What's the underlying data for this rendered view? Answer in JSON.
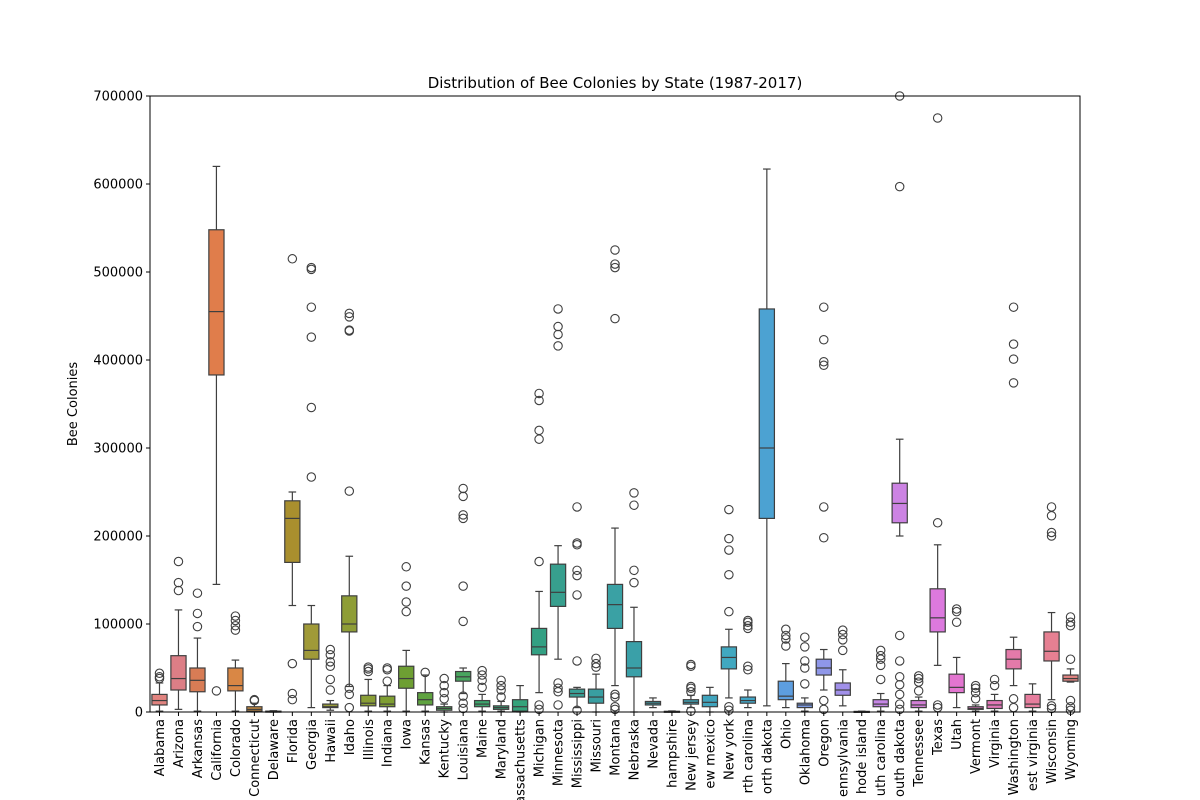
{
  "chart_data": {
    "type": "boxplot",
    "title": "Distribution of Bee Colonies by State (1987-2017)",
    "xlabel": "",
    "ylabel": "Bee Colonies",
    "ylim": [
      0,
      700000
    ],
    "y_ticks": [
      "0",
      "100000",
      "200000",
      "300000",
      "400000",
      "500000",
      "600000",
      "700000"
    ],
    "grid": false,
    "legend": "none",
    "categories": [
      "Alabama",
      "Arizona",
      "Arkansas",
      "California",
      "Colorado",
      "Connecticut",
      "Delaware",
      "Florida",
      "Georgia",
      "Hawaii",
      "Idaho",
      "Illinois",
      "Indiana",
      "Iowa",
      "Kansas",
      "Kentucky",
      "Louisiana",
      "Maine",
      "Maryland",
      "Massachusetts",
      "Michigan",
      "Minnesota",
      "Mississippi",
      "Missouri",
      "Montana",
      "Nebraska",
      "Nevada",
      "New hampshire",
      "New jersey",
      "New mexico",
      "New york",
      "North carolina",
      "North dakota",
      "Ohio",
      "Oklahoma",
      "Oregon",
      "Pennsylvania",
      "Rhode island",
      "South carolina",
      "South dakota",
      "Tennessee",
      "Texas",
      "Utah",
      "Vermont",
      "Virginia",
      "Washington",
      "West virginia",
      "Wisconsin",
      "Wyoming"
    ],
    "tick_labels": [
      "Alabama",
      "Arizona",
      "Arkansas",
      "California",
      "Colorado",
      "Connecticut",
      "Delaware",
      "Florida",
      "Georgia",
      "Hawaii",
      "Idaho",
      "Illinois",
      "Indiana",
      "Iowa",
      "Kansas",
      "Kentucky",
      "Louisiana",
      "Maine",
      "Maryland",
      "assachusetts",
      "Michigan",
      "Minnesota",
      "Mississippi",
      "Missouri",
      "Montana",
      "Nebraska",
      "Nevada",
      "hampshire",
      "New jersey",
      "ew mexico",
      "New york",
      "rth carolina",
      "orth dakota",
      "Ohio",
      "Oklahoma",
      "Oregon",
      "ennsylvania",
      "hode island",
      "uth carolina",
      "outh dakota",
      "Tennessee",
      "Texas",
      "Utah",
      "Vermont",
      "Virginia",
      "Washington",
      "est virginia",
      "Wisconsin",
      "Wyoming"
    ],
    "colors": [
      "#e1837f",
      "#dc7e86",
      "#d87c55",
      "#e07d4b",
      "#d98745",
      "#c78a3e",
      "#b89138",
      "#a98f2e",
      "#a09a38",
      "#989b3b",
      "#8e9d36",
      "#899e36",
      "#7f9f32",
      "#6e9f33",
      "#5fa340",
      "#4ea85b",
      "#49a55f",
      "#3ca56c",
      "#37a677",
      "#35a37b",
      "#33a083",
      "#379f8e",
      "#38a197",
      "#399ea1",
      "#3aa1a4",
      "#3aa0a8",
      "#3ba3ae",
      "#3ca2b2",
      "#3ea3b6",
      "#40a4bd",
      "#41a8c0",
      "#43a8c9",
      "#4ca2d2",
      "#5d9ee0",
      "#7c9be6",
      "#8f97e9",
      "#a190ea",
      "#b78be7",
      "#c686e6",
      "#cc83e3",
      "#d27fd6",
      "#dc79de",
      "#e375d0",
      "#e276c4",
      "#e277b8",
      "#e47aa9",
      "#e67d9d",
      "#e68092",
      "#e18381"
    ],
    "boxes": [
      {
        "q1": 8000,
        "median": 13000,
        "q3": 20000,
        "wl": 1000,
        "wh": 33000,
        "outliers": [
          38000,
          40000,
          44000
        ]
      },
      {
        "q1": 25000,
        "median": 38000,
        "q3": 64000,
        "wl": 3000,
        "wh": 116000,
        "outliers": [
          138000,
          147000,
          171000
        ]
      },
      {
        "q1": 23000,
        "median": 36000,
        "q3": 50000,
        "wl": 1000,
        "wh": 84000,
        "outliers": [
          97000,
          112000,
          135000
        ]
      },
      {
        "q1": 383000,
        "median": 455000,
        "q3": 548000,
        "wl": 145000,
        "wh": 620000,
        "outliers": [
          24000
        ]
      },
      {
        "q1": 24000,
        "median": 30000,
        "q3": 50000,
        "wl": 1000,
        "wh": 59000,
        "outliers": [
          93000,
          98000,
          104000,
          109000
        ]
      },
      {
        "q1": 1000,
        "median": 3000,
        "q3": 6000,
        "wl": 0,
        "wh": 10000,
        "outliers": [
          13000,
          14000
        ]
      },
      {
        "q1": 300,
        "median": 600,
        "q3": 1000,
        "wl": 0,
        "wh": 1500,
        "outliers": []
      },
      {
        "q1": 170000,
        "median": 220000,
        "q3": 240000,
        "wl": 121000,
        "wh": 250000,
        "outliers": [
          55000,
          21000,
          14000,
          515000
        ]
      },
      {
        "q1": 60000,
        "median": 70000,
        "q3": 100000,
        "wl": 5000,
        "wh": 121000,
        "outliers": [
          267000,
          346000,
          426000,
          460000,
          503000,
          505000
        ]
      },
      {
        "q1": 5000,
        "median": 6000,
        "q3": 9000,
        "wl": 2000,
        "wh": 13000,
        "outliers": [
          25000,
          37000,
          52000,
          57000,
          65000,
          71000
        ]
      },
      {
        "q1": 91000,
        "median": 100000,
        "q3": 132000,
        "wl": 29000,
        "wh": 177000,
        "outliers": [
          5000,
          20000,
          27000,
          251000,
          433000,
          434000,
          449000,
          453000
        ]
      },
      {
        "q1": 7000,
        "median": 10000,
        "q3": 19000,
        "wl": 1000,
        "wh": 37000,
        "outliers": [
          46000,
          49000,
          51000
        ]
      },
      {
        "q1": 6000,
        "median": 9000,
        "q3": 18000,
        "wl": 1000,
        "wh": 30000,
        "outliers": [
          35000,
          48000,
          50000
        ]
      },
      {
        "q1": 27000,
        "median": 38000,
        "q3": 52000,
        "wl": 1000,
        "wh": 70000,
        "outliers": [
          114000,
          125000,
          143000,
          165000
        ]
      },
      {
        "q1": 8000,
        "median": 14000,
        "q3": 22000,
        "wl": 1000,
        "wh": 42000,
        "outliers": [
          45000
        ]
      },
      {
        "q1": 2000,
        "median": 4000,
        "q3": 6000,
        "wl": 0,
        "wh": 9000,
        "outliers": [
          15000,
          22000,
          30000,
          38000
        ]
      },
      {
        "q1": 35000,
        "median": 40000,
        "q3": 46000,
        "wl": 21000,
        "wh": 50000,
        "outliers": [
          4000,
          10000,
          18000,
          103000,
          143000,
          220000,
          224000,
          245000,
          254000
        ]
      },
      {
        "q1": 6000,
        "median": 9000,
        "q3": 13000,
        "wl": 1000,
        "wh": 20000,
        "outliers": [
          28000,
          36000,
          42000,
          47000
        ]
      },
      {
        "q1": 3000,
        "median": 5000,
        "q3": 7000,
        "wl": 1000,
        "wh": 12000,
        "outliers": [
          17000,
          25000,
          30000,
          36000
        ]
      },
      {
        "q1": 1000,
        "median": 6000,
        "q3": 14000,
        "wl": 0,
        "wh": 30000,
        "outliers": []
      },
      {
        "q1": 65000,
        "median": 74000,
        "q3": 95000,
        "wl": 22000,
        "wh": 137000,
        "outliers": [
          3000,
          8000,
          171000,
          310000,
          320000,
          354000,
          362000
        ]
      },
      {
        "q1": 120000,
        "median": 136000,
        "q3": 168000,
        "wl": 60000,
        "wh": 189000,
        "outliers": [
          8000,
          23000,
          27000,
          33000,
          416000,
          429000,
          438000,
          458000
        ]
      },
      {
        "q1": 17000,
        "median": 21000,
        "q3": 26000,
        "wl": 5000,
        "wh": 28000,
        "outliers": [
          2000,
          58000,
          133000,
          155000,
          161000,
          190000,
          192000,
          233000
        ]
      },
      {
        "q1": 10000,
        "median": 17000,
        "q3": 26000,
        "wl": 0,
        "wh": 43000,
        "outliers": [
          51000,
          55000,
          61000
        ]
      },
      {
        "q1": 95000,
        "median": 122000,
        "q3": 145000,
        "wl": 30000,
        "wh": 209000,
        "outliers": [
          3000,
          6000,
          17000,
          20000,
          447000,
          505000,
          509000,
          525000
        ]
      },
      {
        "q1": 40000,
        "median": 50000,
        "q3": 80000,
        "wl": 0,
        "wh": 119000,
        "outliers": [
          147000,
          161000,
          235000,
          249000
        ]
      },
      {
        "q1": 8000,
        "median": 10000,
        "q3": 12000,
        "wl": 5000,
        "wh": 16000,
        "outliers": []
      },
      {
        "q1": 200,
        "median": 500,
        "q3": 800,
        "wl": 0,
        "wh": 1200,
        "outliers": []
      },
      {
        "q1": 9000,
        "median": 11000,
        "q3": 14000,
        "wl": 5000,
        "wh": 19000,
        "outliers": [
          1000,
          23000,
          27000,
          29000,
          52000,
          54000
        ]
      },
      {
        "q1": 6000,
        "median": 11000,
        "q3": 19000,
        "wl": 0,
        "wh": 28000,
        "outliers": []
      },
      {
        "q1": 49000,
        "median": 62000,
        "q3": 74000,
        "wl": 16000,
        "wh": 94000,
        "outliers": [
          2000,
          6000,
          114000,
          156000,
          184000,
          197000,
          230000
        ]
      },
      {
        "q1": 10000,
        "median": 13000,
        "q3": 17000,
        "wl": 5000,
        "wh": 25000,
        "outliers": [
          48000,
          52000,
          95000,
          98000,
          102000,
          104000
        ]
      },
      {
        "q1": 220000,
        "median": 300000,
        "q3": 458000,
        "wl": 7000,
        "wh": 617000,
        "outliers": []
      },
      {
        "q1": 14000,
        "median": 18000,
        "q3": 35000,
        "wl": 5000,
        "wh": 55000,
        "outliers": [
          75000,
          83000,
          87000,
          94000
        ]
      },
      {
        "q1": 5000,
        "median": 8000,
        "q3": 10000,
        "wl": 1000,
        "wh": 16000,
        "outliers": [
          32000,
          50000,
          58000,
          74000,
          85000
        ]
      },
      {
        "q1": 42000,
        "median": 50000,
        "q3": 60000,
        "wl": 25000,
        "wh": 71000,
        "outliers": [
          3000,
          13000,
          198000,
          233000,
          394000,
          398000,
          423000,
          460000
        ]
      },
      {
        "q1": 19000,
        "median": 25000,
        "q3": 33000,
        "wl": 7000,
        "wh": 48000,
        "outliers": [
          70000,
          82000,
          88000,
          93000
        ]
      },
      {
        "q1": 100,
        "median": 300,
        "q3": 700,
        "wl": 0,
        "wh": 1000,
        "outliers": []
      },
      {
        "q1": 6000,
        "median": 9000,
        "q3": 14000,
        "wl": 1000,
        "wh": 21000,
        "outliers": [
          37000,
          53000,
          60000,
          64000,
          70000
        ]
      },
      {
        "q1": 215000,
        "median": 237000,
        "q3": 260000,
        "wl": 200000,
        "wh": 310000,
        "outliers": [
          3000,
          9000,
          20000,
          31000,
          40000,
          58000,
          87000,
          597000,
          700000
        ]
      },
      {
        "q1": 5000,
        "median": 8000,
        "q3": 13000,
        "wl": 1000,
        "wh": 17000,
        "outliers": [
          24000,
          34000,
          38000,
          41000
        ]
      },
      {
        "q1": 91000,
        "median": 107000,
        "q3": 140000,
        "wl": 53000,
        "wh": 190000,
        "outliers": [
          5000,
          8000,
          215000,
          675000
        ]
      },
      {
        "q1": 22000,
        "median": 28000,
        "q3": 43000,
        "wl": 5000,
        "wh": 62000,
        "outliers": [
          102000,
          114000,
          117000
        ]
      },
      {
        "q1": 3000,
        "median": 4000,
        "q3": 6000,
        "wl": 1000,
        "wh": 8000,
        "outliers": [
          15000,
          22000,
          27000,
          30000
        ]
      },
      {
        "q1": 4000,
        "median": 8000,
        "q3": 13000,
        "wl": 1000,
        "wh": 20000,
        "outliers": [
          30000,
          37000
        ]
      },
      {
        "q1": 49000,
        "median": 60000,
        "q3": 71000,
        "wl": 30000,
        "wh": 85000,
        "outliers": [
          5000,
          15000,
          374000,
          401000,
          418000,
          460000
        ]
      },
      {
        "q1": 5000,
        "median": 9000,
        "q3": 20000,
        "wl": 1000,
        "wh": 32000,
        "outliers": []
      },
      {
        "q1": 58000,
        "median": 69000,
        "q3": 91000,
        "wl": 14000,
        "wh": 113000,
        "outliers": [
          4000,
          7000,
          200000,
          204000,
          223000,
          233000
        ]
      },
      {
        "q1": 35000,
        "median": 38000,
        "q3": 42000,
        "wl": 34000,
        "wh": 49000,
        "outliers": [
          2000,
          6000,
          13000,
          60000,
          98000,
          102000,
          108000
        ]
      }
    ]
  }
}
